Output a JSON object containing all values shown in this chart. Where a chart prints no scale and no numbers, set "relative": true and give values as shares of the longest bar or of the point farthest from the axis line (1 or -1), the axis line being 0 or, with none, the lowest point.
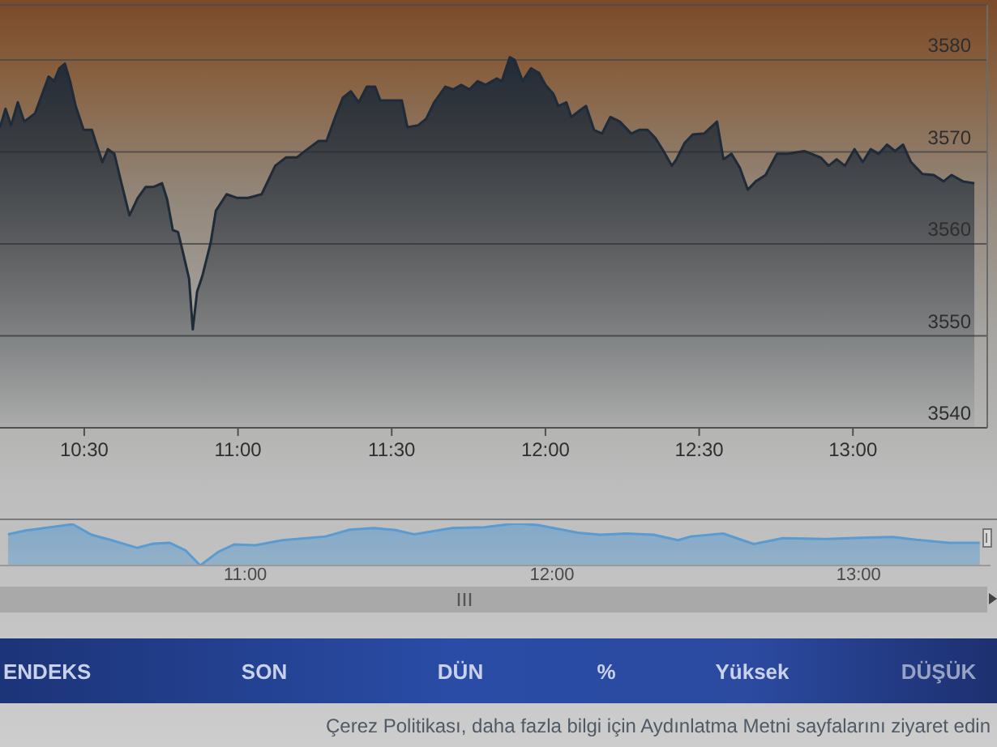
{
  "chart_data": [
    {
      "type": "area",
      "x": [
        10.226,
        10.244,
        10.262,
        10.284,
        10.305,
        10.34,
        10.384,
        10.402,
        10.419,
        10.437,
        10.454,
        10.472,
        10.498,
        10.525,
        10.542,
        10.559,
        10.577,
        10.598,
        10.621,
        10.647,
        10.674,
        10.7,
        10.726,
        10.753,
        10.77,
        10.788,
        10.805,
        10.823,
        10.841,
        10.853,
        10.867,
        10.884,
        10.911,
        10.928,
        10.963,
        10.998,
        11.033,
        11.077,
        11.121,
        11.156,
        11.191,
        11.226,
        11.262,
        11.288,
        11.314,
        11.341,
        11.367,
        11.393,
        11.419,
        11.446,
        11.463,
        11.489,
        11.533,
        11.551,
        11.586,
        11.612,
        11.638,
        11.674,
        11.7,
        11.726,
        11.753,
        11.779,
        11.805,
        11.842,
        11.858,
        11.884,
        11.9,
        11.926,
        11.953,
        11.979,
        12.0,
        12.026,
        12.042,
        12.068,
        12.084,
        12.111,
        12.132,
        12.158,
        12.184,
        12.211,
        12.242,
        12.279,
        12.305,
        12.332,
        12.358,
        12.384,
        12.411,
        12.426,
        12.453,
        12.479,
        12.516,
        12.558,
        12.579,
        12.605,
        12.632,
        12.658,
        12.684,
        12.716,
        12.753,
        12.789,
        12.842,
        12.895,
        12.921,
        12.947,
        12.974,
        13.005,
        13.032,
        13.058,
        13.084,
        13.111,
        13.137,
        13.163,
        13.189,
        13.226,
        13.263,
        13.295,
        13.321,
        13.358,
        13.395
      ],
      "values": [
        3572.7,
        3574.7,
        3572.9,
        3575.4,
        3573.3,
        3574.2,
        3578.2,
        3577.7,
        3579.1,
        3579.6,
        3577.7,
        3575.0,
        3572.4,
        3572.4,
        3570.6,
        3568.9,
        3570.3,
        3569.8,
        3566.6,
        3563.1,
        3565.0,
        3566.2,
        3566.2,
        3566.6,
        3564.8,
        3561.5,
        3561.3,
        3558.8,
        3556.2,
        3550.7,
        3554.8,
        3556.5,
        3560.1,
        3563.6,
        3565.4,
        3565.0,
        3565.0,
        3565.4,
        3568.5,
        3569.4,
        3569.4,
        3570.3,
        3571.2,
        3571.2,
        3573.6,
        3575.9,
        3576.6,
        3575.4,
        3577.1,
        3577.1,
        3575.6,
        3575.6,
        3575.6,
        3572.7,
        3572.9,
        3573.6,
        3575.4,
        3577.1,
        3576.8,
        3577.3,
        3576.8,
        3577.7,
        3577.3,
        3578.0,
        3577.7,
        3580.3,
        3580.0,
        3577.7,
        3579.1,
        3578.6,
        3577.3,
        3576.3,
        3575.0,
        3575.4,
        3573.8,
        3574.5,
        3575.0,
        3572.4,
        3572.0,
        3573.8,
        3573.3,
        3572.0,
        3572.4,
        3572.4,
        3571.5,
        3570.1,
        3568.5,
        3569.2,
        3571.0,
        3571.9,
        3572.0,
        3573.3,
        3569.2,
        3569.8,
        3568.3,
        3565.9,
        3566.8,
        3567.5,
        3569.8,
        3569.8,
        3570.1,
        3569.4,
        3568.5,
        3569.2,
        3568.5,
        3570.3,
        3568.9,
        3570.3,
        3569.8,
        3570.8,
        3570.1,
        3570.8,
        3568.9,
        3567.6,
        3567.5,
        3566.8,
        3567.5,
        3566.8,
        3566.6
      ],
      "color": "#1f2b38",
      "xlim": [
        10.226,
        13.437
      ],
      "xticks": [
        {
          "value": 10.5,
          "label": "10:30"
        },
        {
          "value": 11,
          "label": "11:00"
        },
        {
          "value": 11.5,
          "label": "11:30"
        },
        {
          "value": 12,
          "label": "12:00"
        },
        {
          "value": 12.5,
          "label": "12:30"
        },
        {
          "value": 13,
          "label": "13:00"
        }
      ],
      "ylim": [
        3540,
        3586
      ],
      "yticks": [
        3540,
        3550,
        3560,
        3570,
        3580
      ],
      "grid": "y"
    },
    {
      "type": "area",
      "relative": true,
      "x": [
        10.226,
        10.284,
        10.384,
        10.437,
        10.498,
        10.559,
        10.647,
        10.7,
        10.753,
        10.805,
        10.853,
        10.911,
        10.963,
        11.033,
        11.121,
        11.262,
        11.341,
        11.419,
        11.489,
        11.551,
        11.674,
        11.779,
        11.884,
        11.953,
        12.026,
        12.084,
        12.158,
        12.242,
        12.332,
        12.411,
        12.453,
        12.558,
        12.658,
        12.753,
        12.895,
        13.005,
        13.111,
        13.189,
        13.295,
        13.395
      ],
      "values": [
        0.74,
        0.83,
        0.93,
        0.98,
        0.73,
        0.61,
        0.42,
        0.52,
        0.54,
        0.36,
        0,
        0.32,
        0.5,
        0.48,
        0.6,
        0.69,
        0.85,
        0.89,
        0.84,
        0.74,
        0.89,
        0.91,
        1,
        0.96,
        0.86,
        0.78,
        0.73,
        0.76,
        0.73,
        0.6,
        0.69,
        0.76,
        0.51,
        0.65,
        0.63,
        0.66,
        0.68,
        0.61,
        0.54,
        0.54
      ],
      "color": "#5b9bd0",
      "xlim": [
        10.2,
        13.43
      ],
      "xticks": [
        {
          "value": 11,
          "label": "11:00"
        },
        {
          "value": 12,
          "label": "12:00"
        },
        {
          "value": 13,
          "label": "13:00"
        }
      ]
    },
    {
      "type": "other",
      "annotations": [
        "ENDEKS",
        "SON",
        "DÜN",
        "%",
        "Yüksek",
        "DÜŞÜK",
        "Çerez Politikası, daha fazla bilgi için Aydınlatma Metni sayfalarını ziyaret edin"
      ]
    }
  ]
}
